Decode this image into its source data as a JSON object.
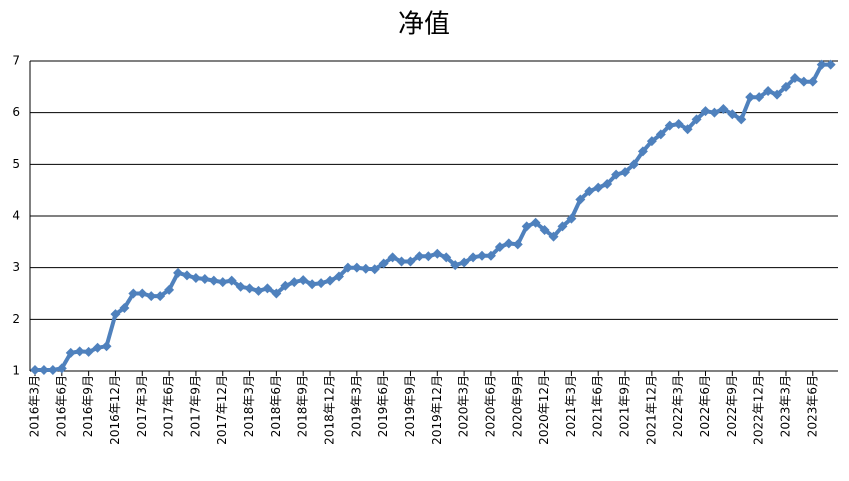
{
  "chart_data": {
    "type": "line",
    "title": "净值",
    "categories": [
      "2016年3月",
      null,
      null,
      "2016年6月",
      null,
      null,
      "2016年9月",
      null,
      null,
      "2016年12月",
      null,
      null,
      "2017年3月",
      null,
      null,
      "2017年6月",
      null,
      null,
      "2017年9月",
      null,
      null,
      "2017年12月",
      null,
      null,
      "2018年3月",
      null,
      null,
      "2018年6月",
      null,
      null,
      "2018年9月",
      null,
      null,
      "2018年12月",
      null,
      null,
      "2019年3月",
      null,
      null,
      "2019年6月",
      null,
      null,
      "2019年9月",
      null,
      null,
      "2019年12月",
      null,
      null,
      "2020年3月",
      null,
      null,
      "2020年6月",
      null,
      null,
      "2020年9月",
      null,
      null,
      "2020年12月",
      null,
      null,
      "2021年3月",
      null,
      null,
      "2021年6月",
      null,
      null,
      "2021年9月",
      null,
      null,
      "2021年12月",
      null,
      null,
      "2022年3月",
      null,
      null,
      "2022年6月",
      null,
      null,
      "2022年9月",
      null,
      null,
      "2022年12月",
      null,
      null,
      "2023年3月",
      null,
      null,
      "2023年6月",
      null,
      null
    ],
    "values": [
      1.02,
      1.02,
      1.02,
      1.05,
      1.35,
      1.38,
      1.37,
      1.45,
      1.48,
      2.1,
      2.22,
      2.5,
      2.5,
      2.45,
      2.45,
      2.57,
      2.9,
      2.85,
      2.8,
      2.78,
      2.75,
      2.72,
      2.75,
      2.63,
      2.6,
      2.55,
      2.6,
      2.5,
      2.65,
      2.72,
      2.76,
      2.68,
      2.7,
      2.75,
      2.83,
      3.0,
      3.0,
      2.98,
      2.97,
      3.08,
      3.2,
      3.12,
      3.12,
      3.22,
      3.22,
      3.27,
      3.2,
      3.05,
      3.1,
      3.2,
      3.23,
      3.23,
      3.4,
      3.47,
      3.45,
      3.8,
      3.87,
      3.73,
      3.6,
      3.8,
      3.95,
      4.32,
      4.48,
      4.55,
      4.62,
      4.8,
      4.85,
      5.0,
      5.25,
      5.45,
      5.58,
      5.75,
      5.78,
      5.68,
      5.87,
      6.03,
      6.0,
      6.07,
      5.97,
      5.87,
      6.3,
      6.3,
      6.42,
      6.35,
      6.5,
      6.67,
      6.6,
      6.6,
      6.93,
      6.93
    ],
    "color": "#4f81bd",
    "ylim": [
      1,
      7
    ],
    "yticks": [
      1,
      2,
      3,
      4,
      5,
      6,
      7
    ],
    "grid": true
  }
}
